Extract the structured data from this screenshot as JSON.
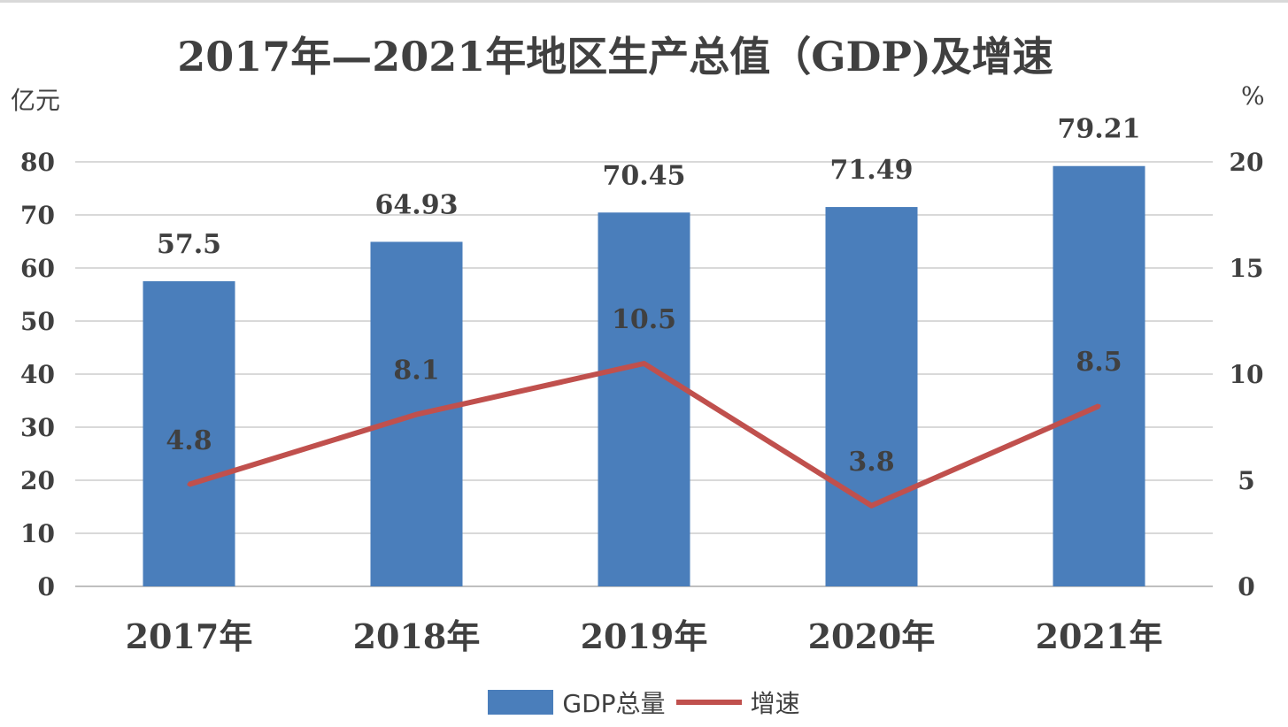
{
  "chart_data": {
    "type": "bar",
    "title": "2017年—2021年地区生产总值（GDP)及增速",
    "ylabel_left": "亿元",
    "ylabel_right": "%",
    "categories": [
      "2017年",
      "2018年",
      "2019年",
      "2020年",
      "2021年"
    ],
    "ylim_left": [
      0,
      80
    ],
    "ylim_right": [
      0,
      20
    ],
    "yticks_left": [
      "0",
      "10",
      "20",
      "30",
      "40",
      "50",
      "60",
      "70",
      "80"
    ],
    "yticks_right": [
      "0",
      "5",
      "10",
      "15",
      "20"
    ],
    "grid": true,
    "legend_position": "bottom",
    "series": [
      {
        "name": "GDP总量",
        "type": "bar",
        "axis": "left",
        "values": [
          57.5,
          64.93,
          70.45,
          71.49,
          79.21
        ],
        "labels": [
          "57.5",
          "64.93",
          "70.45",
          "71.49",
          "79.21"
        ],
        "color": "#4a7ebb"
      },
      {
        "name": "增速",
        "type": "line",
        "axis": "right",
        "values": [
          4.8,
          8.1,
          10.5,
          3.8,
          8.5
        ],
        "labels": [
          "4.8",
          "8.1",
          "10.5",
          "3.8",
          "8.5"
        ],
        "color": "#c0504d"
      }
    ]
  }
}
